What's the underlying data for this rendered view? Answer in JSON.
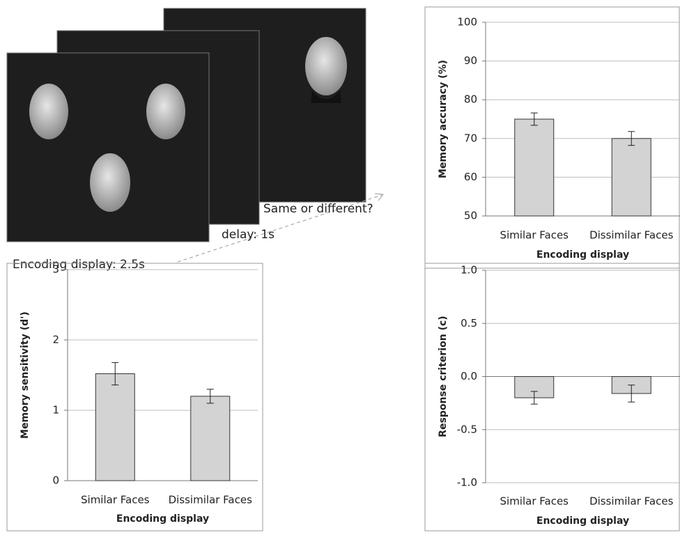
{
  "diagram": {
    "labels": [
      "Same or different?",
      "delay: 1s",
      "Encoding display: 2.5s"
    ]
  },
  "chart_data": [
    {
      "type": "bar",
      "ylabel": "Memory accuracy (%)",
      "xlabel": "Encoding display",
      "categories": [
        "Similar Faces",
        "Dissimilar Faces"
      ],
      "values": [
        75,
        70
      ],
      "errors": [
        1.6,
        1.8
      ],
      "color": "#d3d3d3",
      "ylim": [
        50,
        100
      ],
      "yticks": [
        50,
        60,
        70,
        80,
        90,
        100
      ],
      "grid": true
    },
    {
      "type": "bar",
      "ylabel": "Memory sensitivity (d')",
      "xlabel": "Encoding display",
      "categories": [
        "Similar Faces",
        "Dissimilar Faces"
      ],
      "values": [
        1.52,
        1.2
      ],
      "errors": [
        0.16,
        0.1
      ],
      "color": "#d3d3d3",
      "ylim": [
        0,
        3
      ],
      "yticks": [
        0,
        1,
        2,
        3
      ],
      "grid": true
    },
    {
      "type": "bar",
      "ylabel": "Response criterion (c)",
      "xlabel": "Encoding display",
      "categories": [
        "Similar Faces",
        "Dissimilar Faces"
      ],
      "values": [
        -0.2,
        -0.16
      ],
      "errors": [
        0.06,
        0.08
      ],
      "color": "#d3d3d3",
      "ylim": [
        -1,
        1
      ],
      "yticks": [
        {
          "value": -1,
          "label": "-1.0"
        },
        -0.5,
        {
          "value": 0,
          "label": "0.0"
        },
        0.5,
        {
          "value": 1,
          "label": "1.0"
        }
      ],
      "grid": true
    }
  ]
}
